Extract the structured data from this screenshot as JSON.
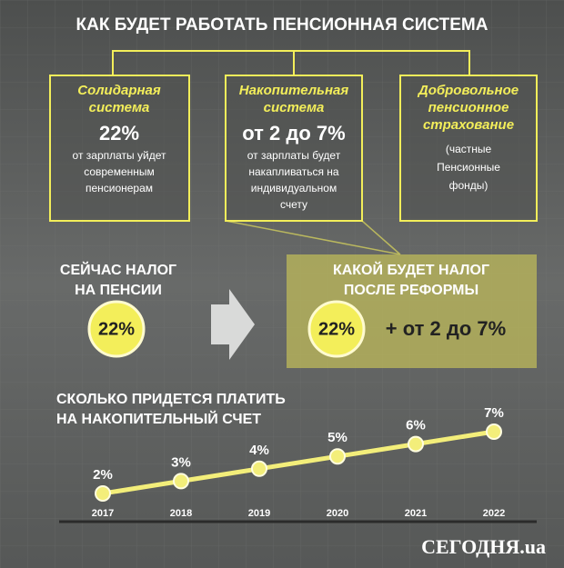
{
  "title": "КАК БУДЕТ РАБОТАТЬ ПЕНСИОННАЯ СИСТЕМА",
  "boxes": [
    {
      "title": [
        "Солидарная",
        "система"
      ],
      "number": "22%",
      "text": [
        "от зарплаты уйдет",
        "современным",
        "пенсионерам"
      ]
    },
    {
      "title": [
        "Накопительная",
        "система"
      ],
      "number": "от 2 до 7%",
      "text": [
        "от зарплаты будет",
        "накапливаться на",
        "индивидуальном",
        "счету"
      ]
    },
    {
      "title": [
        "Добровольное",
        "пенсионное",
        "страхование"
      ],
      "text": [
        "(частные",
        "Пенсионные",
        "фонды)"
      ]
    }
  ],
  "current": {
    "title": [
      "СЕЙЧАС НАЛОГ",
      "НА ПЕНСИИ"
    ],
    "rate": "22%"
  },
  "reform": {
    "title": [
      "КАКОЙ БУДЕТ НАЛОГ",
      "ПОСЛЕ РЕФОРМЫ"
    ],
    "rate": "22%",
    "extra": "+ от 2 до 7%"
  },
  "chart_data": {
    "type": "line",
    "title": [
      "СКОЛЬКО ПРИДЕТСЯ ПЛАТИТЬ",
      "НА НАКОПИТЕЛЬНЫЙ СЧЕТ"
    ],
    "categories": [
      "2017",
      "2018",
      "2019",
      "2020",
      "2021",
      "2022"
    ],
    "values": [
      2,
      3,
      4,
      5,
      6,
      7
    ],
    "value_labels": [
      "2%",
      "3%",
      "4%",
      "5%",
      "6%",
      "7%"
    ],
    "color": "#f3ee7a"
  },
  "logo": "СЕГОДНЯ.ua"
}
